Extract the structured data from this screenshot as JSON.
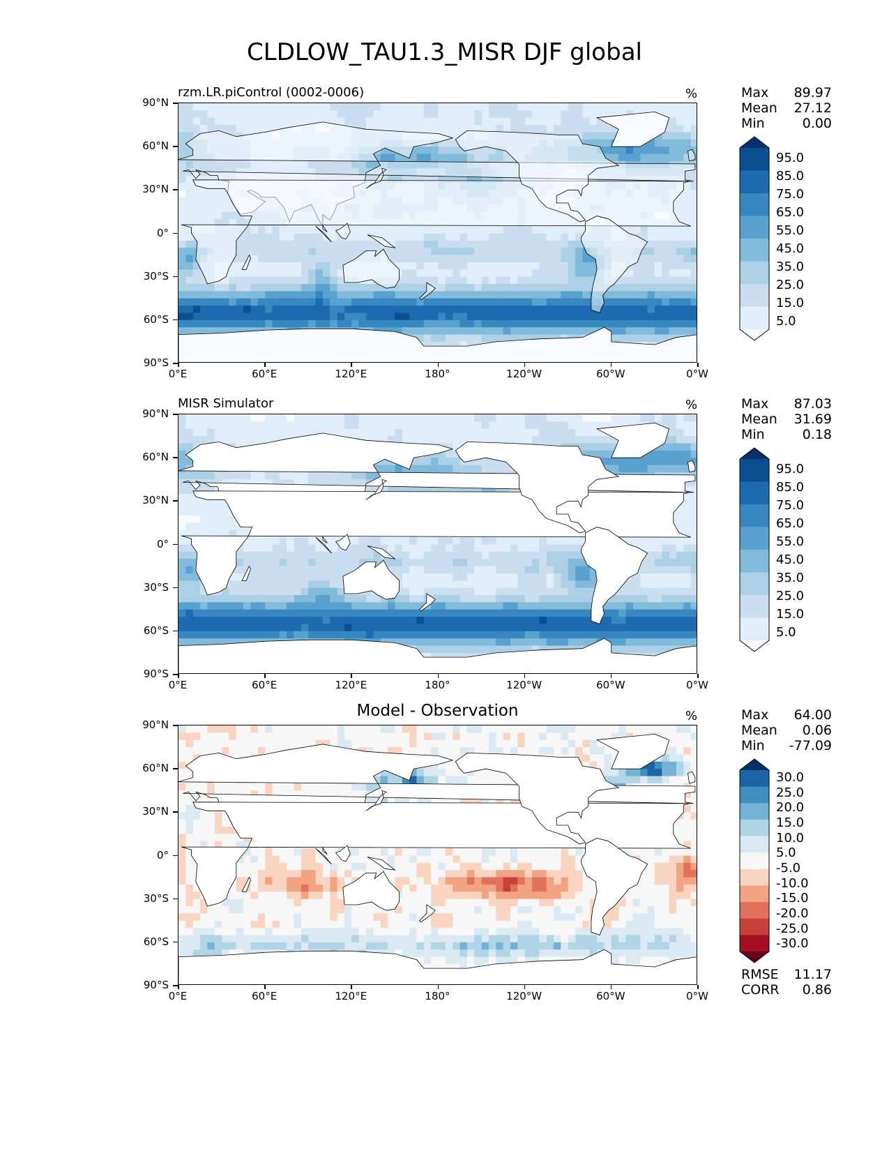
{
  "title": "CLDLOW_TAU1.3_MISR DJF global",
  "axes": {
    "lat_labels": [
      "90°N",
      "60°N",
      "30°N",
      "0°",
      "30°S",
      "60°S",
      "90°S"
    ],
    "lon_labels": [
      "0°E",
      "60°E",
      "120°E",
      "180°",
      "120°W",
      "60°W",
      "0°W"
    ]
  },
  "panels": [
    {
      "title": "rzm.LR.piControl (0002-0006)",
      "title_position": "left",
      "unit": "%",
      "stats": [
        {
          "label": "Max",
          "value": "89.97"
        },
        {
          "label": "Mean",
          "value": "27.12"
        },
        {
          "label": "Min",
          "value": "0.00"
        }
      ],
      "colorbar_labels": [
        "95.0",
        "85.0",
        "75.0",
        "65.0",
        "55.0",
        "45.0",
        "35.0",
        "25.0",
        "15.0",
        "5.0"
      ],
      "colormap": "blues",
      "fill": "full"
    },
    {
      "title": "MISR Simulator",
      "title_position": "left",
      "unit": "%",
      "stats": [
        {
          "label": "Max",
          "value": "87.03"
        },
        {
          "label": "Mean",
          "value": "31.69"
        },
        {
          "label": "Min",
          "value": "0.18"
        }
      ],
      "colorbar_labels": [
        "95.0",
        "85.0",
        "75.0",
        "65.0",
        "55.0",
        "45.0",
        "35.0",
        "25.0",
        "15.0",
        "5.0"
      ],
      "colormap": "blues",
      "fill": "ocean"
    },
    {
      "title": "Model - Observation",
      "title_position": "center",
      "unit": "%",
      "stats": [
        {
          "label": "Max",
          "value": "64.00"
        },
        {
          "label": "Mean",
          "value": "0.06"
        },
        {
          "label": "Min",
          "value": "-77.09"
        }
      ],
      "colorbar_labels": [
        "30.0",
        "25.0",
        "20.0",
        "15.0",
        "10.0",
        "5.0",
        "-5.0",
        "-10.0",
        "-15.0",
        "-20.0",
        "-25.0",
        "-30.0"
      ],
      "colormap": "rdbu",
      "fill": "ocean",
      "error_stats": [
        {
          "label": "RMSE",
          "value": "11.17"
        },
        {
          "label": "CORR",
          "value": "0.86"
        }
      ]
    }
  ],
  "colors": {
    "blues": [
      "#f7fbff",
      "#e1edf8",
      "#cadef0",
      "#abcfe5",
      "#82badb",
      "#59a1cf",
      "#3787c0",
      "#1c6ab0",
      "#0a4f90",
      "#08306b"
    ],
    "rdbu": [
      "#67001f",
      "#a50f22",
      "#c8403a",
      "#e0725d",
      "#f1a382",
      "#f9d4c0",
      "#f7f7f7",
      "#dbeaf2",
      "#b0d5e7",
      "#73b2d4",
      "#3f8ec0",
      "#1c64a6",
      "#053061"
    ],
    "land_outline": "#000000"
  }
}
